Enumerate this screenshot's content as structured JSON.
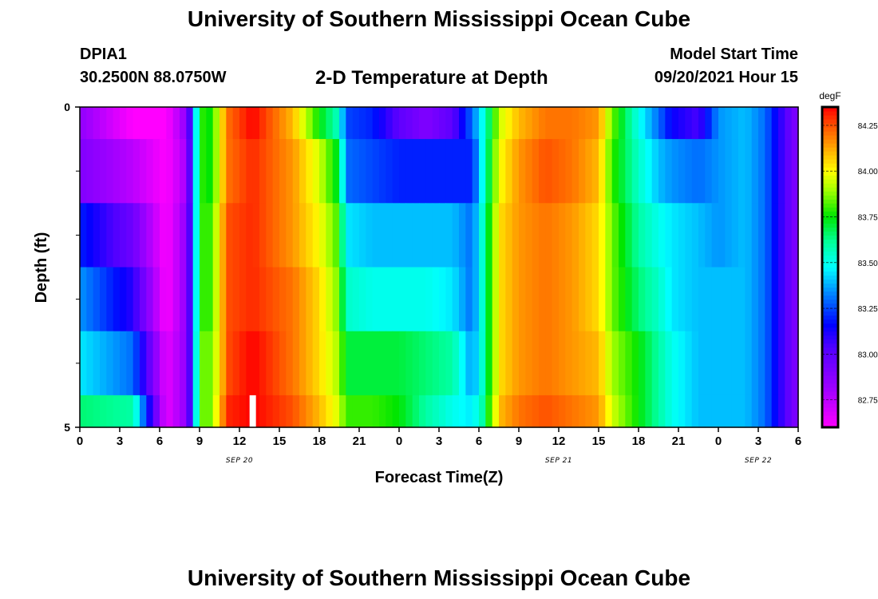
{
  "header": {
    "title": "University of Southern Mississippi Ocean Cube",
    "station_id": "DPIA1",
    "coordinates": "30.2500N  88.0750W",
    "chart_title": "2-D Temperature at Depth",
    "model_start_label": "Model Start Time",
    "model_start_value": "09/20/2021 Hour 15"
  },
  "footer": {
    "title": "University of Southern Mississippi Ocean Cube"
  },
  "chart_data": {
    "type": "heatmap",
    "title": "2-D Temperature at Depth",
    "xlabel": "Forecast Time(Z)",
    "ylabel": "Depth (ft)",
    "xlim": [
      0,
      54
    ],
    "ylim": [
      0,
      5
    ],
    "y_tick_labels": [
      {
        "depth": 0,
        "label": "0"
      },
      {
        "depth": 5,
        "label": "5"
      }
    ],
    "y_minor_ticks": [
      1,
      2,
      3,
      4
    ],
    "x_ticks": [
      {
        "h": 0,
        "label": "0"
      },
      {
        "h": 3,
        "label": "3"
      },
      {
        "h": 6,
        "label": "6"
      },
      {
        "h": 9,
        "label": "9"
      },
      {
        "h": 12,
        "label": "12"
      },
      {
        "h": 15,
        "label": "15"
      },
      {
        "h": 18,
        "label": "18"
      },
      {
        "h": 21,
        "label": "21"
      },
      {
        "h": 24,
        "label": "0"
      },
      {
        "h": 27,
        "label": "3"
      },
      {
        "h": 30,
        "label": "6"
      },
      {
        "h": 33,
        "label": "9"
      },
      {
        "h": 36,
        "label": "12"
      },
      {
        "h": 39,
        "label": "15"
      },
      {
        "h": 42,
        "label": "18"
      },
      {
        "h": 45,
        "label": "21"
      },
      {
        "h": 48,
        "label": "0"
      },
      {
        "h": 51,
        "label": "3"
      },
      {
        "h": 54,
        "label": "6"
      }
    ],
    "date_labels": [
      {
        "h": 12,
        "label": "SEP 20"
      },
      {
        "h": 36,
        "label": "SEP 21"
      },
      {
        "h": 51,
        "label": "SEP 22"
      }
    ],
    "current_time_marker_hour": 13,
    "colorbar": {
      "unit": "degF",
      "min": 82.6,
      "max": 84.35,
      "tick_values": [
        82.75,
        83.0,
        83.25,
        83.5,
        83.75,
        84.0,
        84.25
      ],
      "tick_labels": [
        "82.750",
        "83.000",
        "83.250",
        "83.500",
        "83.750",
        "84.000",
        "84.250"
      ]
    },
    "depth_rows": [
      {
        "top": 0.0,
        "bottom": 0.5
      },
      {
        "top": 0.5,
        "bottom": 1.5
      },
      {
        "top": 1.5,
        "bottom": 2.5
      },
      {
        "top": 2.5,
        "bottom": 3.5
      },
      {
        "top": 3.5,
        "bottom": 4.5
      },
      {
        "top": 4.5,
        "bottom": 5.0
      }
    ],
    "profiles": [
      {
        "h": [
          0,
          4,
          6.5,
          8,
          8.6,
          9,
          9.8,
          10.6,
          11,
          13,
          16,
          18,
          19.5,
          20,
          22,
          24,
          26,
          28,
          29.5,
          30.3,
          31,
          31.6,
          33,
          35,
          37,
          39,
          40,
          42,
          43.5,
          44.5,
          46.5,
          48,
          50,
          51.5,
          53.5,
          54
        ],
        "t": [
          82.85,
          82.6,
          82.6,
          82.85,
          83.3,
          83.8,
          83.75,
          84.0,
          84.2,
          84.35,
          84.1,
          83.75,
          83.55,
          83.25,
          83.2,
          83.0,
          82.9,
          83.0,
          83.3,
          83.5,
          83.75,
          83.95,
          84.1,
          84.2,
          84.2,
          84.15,
          83.85,
          83.5,
          83.3,
          83.15,
          83.05,
          83.35,
          83.4,
          83.3,
          82.95,
          82.9
        ]
      },
      {
        "h": [
          0,
          4,
          6.5,
          8,
          8.6,
          9,
          9.8,
          10.6,
          11,
          13,
          16,
          18,
          19.5,
          20,
          22,
          24,
          26,
          28,
          29.5,
          30.3,
          31,
          31.6,
          33,
          35,
          37,
          39,
          40,
          42,
          43.5,
          44.5,
          46.5,
          48,
          50,
          51.5,
          53.5,
          54
        ],
        "t": [
          82.9,
          82.75,
          82.6,
          82.8,
          83.3,
          83.8,
          83.75,
          84.0,
          84.2,
          84.3,
          84.15,
          83.95,
          83.7,
          83.3,
          83.25,
          83.2,
          83.2,
          83.2,
          83.2,
          83.5,
          83.8,
          84.0,
          84.15,
          84.25,
          84.2,
          84.1,
          83.8,
          83.55,
          83.4,
          83.35,
          83.3,
          83.35,
          83.4,
          83.3,
          82.95,
          82.9
        ]
      },
      {
        "h": [
          0,
          4,
          6.5,
          8,
          8.6,
          9,
          9.8,
          10.6,
          11,
          13,
          16,
          18,
          19.5,
          20,
          22,
          24,
          26,
          28,
          29.5,
          30.3,
          31,
          31.6,
          33,
          35,
          37,
          39,
          40,
          42,
          43.5,
          44.5,
          46.5,
          48,
          50,
          51.5,
          53.5,
          54
        ],
        "t": [
          83.2,
          82.95,
          82.6,
          82.85,
          83.3,
          83.8,
          83.8,
          84.05,
          84.25,
          84.3,
          84.15,
          84.0,
          83.8,
          83.45,
          83.4,
          83.4,
          83.4,
          83.4,
          83.3,
          83.55,
          83.85,
          84.05,
          84.15,
          84.2,
          84.15,
          84.05,
          83.85,
          83.6,
          83.5,
          83.45,
          83.4,
          83.35,
          83.4,
          83.3,
          82.95,
          82.9
        ]
      },
      {
        "h": [
          0,
          4,
          6.5,
          8,
          8.6,
          9,
          9.8,
          10.6,
          11,
          13,
          16,
          18,
          19.5,
          20,
          22,
          24,
          26,
          28,
          29.5,
          30.3,
          31,
          31.6,
          33,
          35,
          37,
          39,
          40,
          42,
          43.5,
          44.5,
          46.5,
          48,
          50,
          51.5,
          53.5,
          54
        ],
        "t": [
          83.35,
          83.1,
          82.6,
          82.85,
          83.3,
          83.8,
          83.8,
          84.05,
          84.25,
          84.3,
          84.2,
          84.05,
          83.85,
          83.55,
          83.5,
          83.5,
          83.5,
          83.45,
          83.3,
          83.55,
          83.85,
          84.05,
          84.15,
          84.2,
          84.15,
          84.05,
          83.85,
          83.65,
          83.55,
          83.45,
          83.4,
          83.4,
          83.4,
          83.3,
          82.95,
          82.9
        ]
      },
      {
        "h": [
          0,
          4,
          6.5,
          8,
          8.6,
          9,
          9.8,
          10.6,
          11,
          13,
          16,
          18,
          19.5,
          20,
          22,
          24,
          26,
          28,
          29.5,
          30.3,
          31,
          31.6,
          33,
          35,
          37,
          39,
          40,
          42,
          43.5,
          44.5,
          46.5,
          48,
          50,
          51.5,
          53.5,
          54
        ],
        "t": [
          83.45,
          83.3,
          82.65,
          82.85,
          83.3,
          83.85,
          83.85,
          84.05,
          84.25,
          84.35,
          84.2,
          84.05,
          83.9,
          83.7,
          83.7,
          83.7,
          83.65,
          83.6,
          83.35,
          83.55,
          83.85,
          84.05,
          84.15,
          84.2,
          84.15,
          84.1,
          83.9,
          83.75,
          83.6,
          83.5,
          83.4,
          83.4,
          83.4,
          83.3,
          82.95,
          82.9
        ]
      },
      {
        "h": [
          0,
          4,
          6.5,
          8,
          8.6,
          9,
          9.8,
          10.6,
          11,
          13,
          16,
          18,
          19.5,
          20,
          22,
          24,
          26,
          28,
          29.5,
          30.3,
          31,
          31.6,
          33,
          35,
          37,
          39,
          40,
          42,
          43.5,
          44.5,
          46.5,
          48,
          50,
          51.5,
          53.5,
          54
        ],
        "t": [
          83.65,
          83.6,
          82.65,
          82.85,
          83.3,
          83.85,
          83.85,
          84.1,
          84.3,
          84.35,
          84.25,
          84.1,
          83.95,
          83.8,
          83.8,
          83.75,
          83.6,
          83.5,
          83.45,
          83.6,
          83.9,
          84.1,
          84.2,
          84.25,
          84.2,
          84.15,
          83.95,
          83.75,
          83.6,
          83.5,
          83.4,
          83.4,
          83.4,
          83.3,
          82.95,
          82.9
        ]
      }
    ]
  }
}
